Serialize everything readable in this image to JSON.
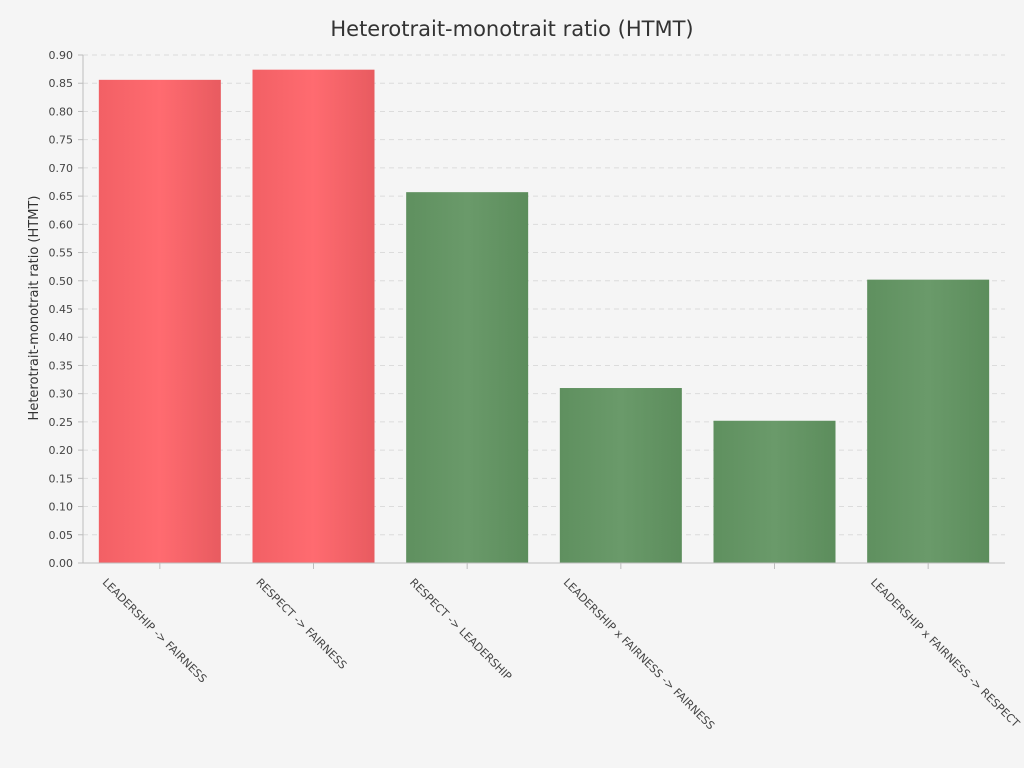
{
  "chart_data": {
    "type": "bar",
    "title": "Heterotrait-monotrait ratio (HTMT)",
    "ylabel": "Heterotrait-monotrait ratio (HTMT)",
    "xlabel": "",
    "ylim": [
      0,
      0.9
    ],
    "yticks": [
      "0.00",
      "0.05",
      "0.10",
      "0.15",
      "0.20",
      "0.25",
      "0.30",
      "0.35",
      "0.40",
      "0.45",
      "0.50",
      "0.55",
      "0.60",
      "0.65",
      "0.70",
      "0.75",
      "0.80",
      "0.85",
      "0.90"
    ],
    "grid": true,
    "categories": [
      "LEADERSHIP -> FAIRNESS",
      "RESPECT -> FAIRNESS",
      "RESPECT -> LEADERSHIP",
      "LEADERSHIP x FAIRNESS -> FAIRNESS",
      "",
      "LEADERSHIP x FAIRNESS -> RESPECT"
    ],
    "values": [
      0.856,
      0.874,
      0.657,
      0.31,
      0.252,
      0.502
    ],
    "bar_colors": [
      "#f26065",
      "#f26065",
      "#659565",
      "#659565",
      "#659565",
      "#659565"
    ]
  }
}
